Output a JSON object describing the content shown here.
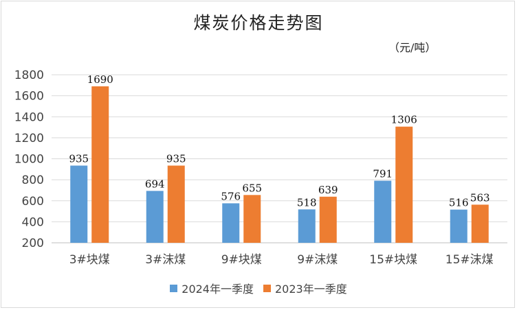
{
  "chart_data": {
    "type": "bar",
    "title": "煤炭价格走势图",
    "unit": "（元/吨）",
    "categories": [
      "3#块煤",
      "3#沫煤",
      "9#块煤",
      "9#沫煤",
      "15#块煤",
      "15#沫煤"
    ],
    "series": [
      {
        "name": "2024年一季度",
        "color": "#5b9bd5",
        "values": [
          935,
          694,
          576,
          518,
          791,
          516
        ]
      },
      {
        "name": "2023年一季度",
        "color": "#ed7d31",
        "values": [
          1690,
          935,
          655,
          639,
          1306,
          563
        ]
      }
    ],
    "ylim": [
      200,
      1800
    ],
    "yticks": [
      200,
      400,
      600,
      800,
      1000,
      1200,
      1400,
      1600,
      1800
    ],
    "grid": true,
    "legend_position": "bottom"
  }
}
